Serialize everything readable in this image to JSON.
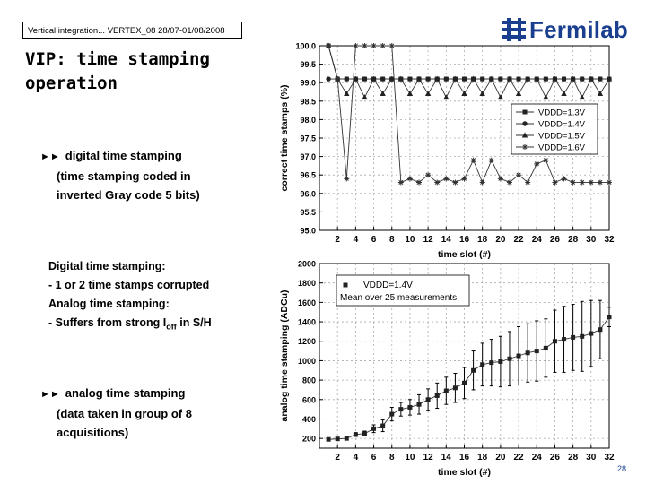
{
  "header": {
    "box_text": "Vertical integration... VERTEX_08 28/07-01/08/2008"
  },
  "logo": {
    "text": "Fermilab"
  },
  "slide": {
    "title_line1": "VIP: time stamping",
    "title_line2": "operation",
    "bullet1": [
      "digital time stamping",
      "(time stamping coded in",
      "inverted Gray code 5 bits)"
    ],
    "note1": "Digital time stamping:",
    "note2": "- 1 or 2 time stamps corrupted",
    "note3": "Analog time stamping:",
    "note4_prefix": "- Suffers from strong I",
    "note4_sub": "off",
    "note4_suffix": " in S/H",
    "bullet2": [
      "analog time stamping",
      "(data taken in group of 8",
      "acquisitions)"
    ],
    "page_number": "28"
  },
  "chart_data": [
    {
      "type": "line",
      "title": "",
      "xlabel": "time slot (#)",
      "ylabel": "correct time stamps (%)",
      "xlim": [
        0,
        32
      ],
      "ylim": [
        95.0,
        100.0
      ],
      "xticks": [
        2,
        4,
        6,
        8,
        10,
        12,
        14,
        16,
        18,
        20,
        22,
        24,
        26,
        28,
        30,
        32
      ],
      "yticks": [
        "95.0",
        "95.5",
        "96.0",
        "96.5",
        "97.0",
        "97.5",
        "98.0",
        "98.5",
        "99.0",
        "99.5",
        "100.0"
      ],
      "x": [
        1,
        2,
        3,
        4,
        5,
        6,
        7,
        8,
        9,
        10,
        11,
        12,
        13,
        14,
        15,
        16,
        17,
        18,
        19,
        20,
        21,
        22,
        23,
        24,
        25,
        26,
        27,
        28,
        29,
        30,
        31,
        32
      ],
      "series": [
        {
          "name": "VDDD=1.3V",
          "marker": "square",
          "values": [
            100.0,
            99.1,
            99.1,
            99.1,
            99.1,
            99.1,
            99.1,
            99.1,
            99.1,
            99.1,
            99.1,
            99.1,
            99.1,
            99.1,
            99.1,
            99.1,
            99.1,
            99.1,
            99.1,
            99.1,
            99.1,
            99.1,
            99.1,
            99.1,
            99.1,
            99.1,
            99.1,
            99.1,
            99.1,
            99.1,
            99.1,
            99.1
          ]
        },
        {
          "name": "VDDD=1.4V",
          "marker": "circle",
          "values": [
            99.1,
            99.1,
            99.1,
            99.1,
            99.1,
            99.1,
            99.1,
            99.1,
            99.1,
            99.1,
            99.1,
            99.1,
            99.1,
            99.1,
            99.1,
            99.1,
            99.1,
            99.1,
            99.1,
            99.1,
            99.1,
            99.1,
            99.1,
            99.1,
            99.1,
            99.1,
            99.1,
            99.1,
            99.1,
            99.1,
            99.1,
            99.1
          ]
        },
        {
          "name": "VDDD=1.5V",
          "marker": "triangle",
          "values": [
            100.0,
            99.1,
            98.7,
            99.1,
            98.6,
            99.1,
            98.7,
            99.1,
            99.1,
            98.7,
            99.1,
            98.7,
            99.1,
            98.6,
            99.1,
            98.7,
            99.1,
            98.7,
            99.1,
            98.6,
            99.1,
            98.7,
            99.1,
            99.1,
            98.6,
            99.1,
            98.7,
            99.1,
            98.6,
            99.1,
            98.7,
            99.1
          ]
        },
        {
          "name": "VDDD=1.6V",
          "marker": "star",
          "values": [
            100.0,
            99.1,
            96.4,
            100.0,
            100.0,
            100.0,
            100.0,
            100.0,
            96.3,
            96.4,
            96.3,
            96.5,
            96.3,
            96.4,
            96.3,
            96.4,
            96.9,
            96.3,
            96.9,
            96.4,
            96.3,
            96.5,
            96.3,
            96.8,
            96.9,
            96.3,
            96.4,
            96.3,
            96.3,
            96.3,
            96.3,
            96.3
          ]
        }
      ],
      "legend": [
        "VDDD=1.3V",
        "VDDD=1.4V",
        "VDDD=1.5V",
        "VDDD=1.6V"
      ],
      "legend_position": "right"
    },
    {
      "type": "line",
      "title": "",
      "xlabel": "time slot (#)",
      "ylabel": "analog time stamping (ADCu)",
      "xlim": [
        0,
        32
      ],
      "ylim": [
        100,
        2000
      ],
      "xticks": [
        2,
        4,
        6,
        8,
        10,
        12,
        14,
        16,
        18,
        20,
        22,
        24,
        26,
        28,
        30,
        32
      ],
      "yticks": [
        200,
        400,
        600,
        800,
        1000,
        1200,
        1400,
        1600,
        1800,
        2000
      ],
      "x": [
        1,
        2,
        3,
        4,
        5,
        6,
        7,
        8,
        9,
        10,
        11,
        12,
        13,
        14,
        15,
        16,
        17,
        18,
        19,
        20,
        21,
        22,
        23,
        24,
        25,
        26,
        27,
        28,
        29,
        30,
        31,
        32
      ],
      "series": [
        {
          "name": "VDDD=1.4V",
          "marker": "square",
          "values": [
            190,
            195,
            200,
            240,
            250,
            300,
            330,
            450,
            500,
            520,
            550,
            600,
            640,
            690,
            720,
            770,
            900,
            960,
            980,
            990,
            1020,
            1050,
            1080,
            1100,
            1130,
            1200,
            1220,
            1240,
            1250,
            1280,
            1320,
            1450
          ],
          "errors": [
            5,
            5,
            10,
            20,
            25,
            40,
            60,
            70,
            70,
            80,
            100,
            110,
            130,
            140,
            150,
            160,
            200,
            220,
            240,
            260,
            280,
            300,
            300,
            310,
            300,
            320,
            340,
            340,
            360,
            340,
            300,
            100
          ]
        }
      ],
      "legend": [
        "VDDD=1.4V",
        "Mean over 25 measurements"
      ],
      "legend_position": "top-left"
    }
  ]
}
